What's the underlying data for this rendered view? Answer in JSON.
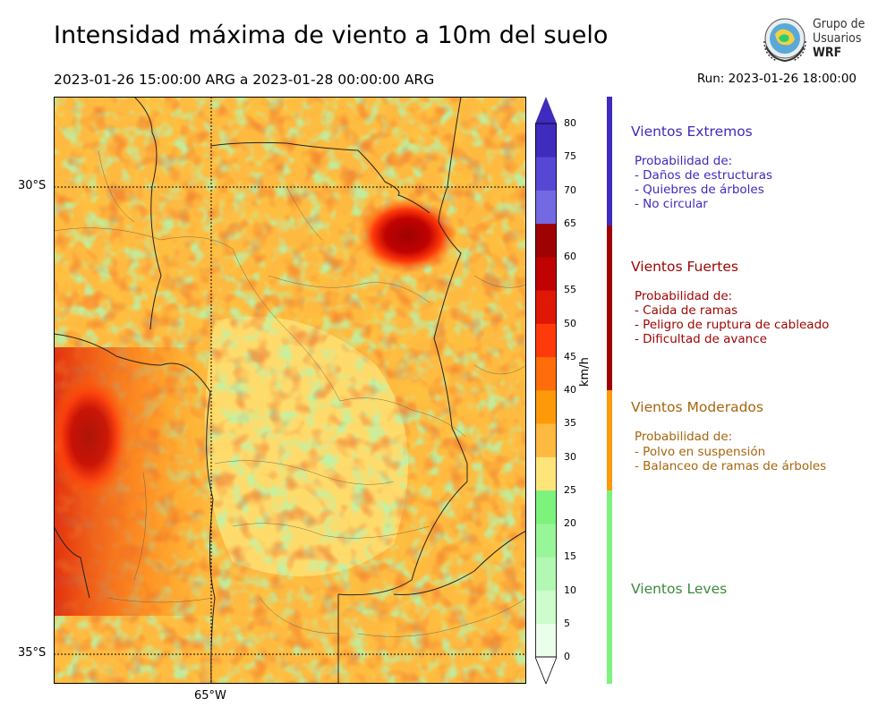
{
  "header": {
    "title": "Intensidad máxima de viento a 10m del suelo",
    "period": "2023-01-26 15:00:00 ARG  a  2023-01-28 00:00:00 ARG",
    "run": "Run: 2023-01-26 18:00:00"
  },
  "logo": {
    "line1": "Grupo de",
    "line2": "Usuarios",
    "line3": "WRF",
    "emblem_icon": "wrf-globe-emblem-icon"
  },
  "map": {
    "lat_labels": [
      "30°S",
      "35°S"
    ],
    "lon_labels": [
      "65°W"
    ],
    "field_icon": "wind-speed-field"
  },
  "colorbar": {
    "units": "km/h",
    "ticks": [
      "0",
      "5",
      "10",
      "15",
      "20",
      "25",
      "30",
      "35",
      "40",
      "45",
      "50",
      "55",
      "60",
      "65",
      "70",
      "75",
      "80"
    ],
    "colors": [
      "#eafeea",
      "#cdfccd",
      "#b2f8b2",
      "#98f598",
      "#7df27d",
      "#fee57a",
      "#feb941",
      "#fe9a0a",
      "#fe6d0a",
      "#fe3a0a",
      "#de1805",
      "#c10202",
      "#9e0202",
      "#7369e3",
      "#5647d4",
      "#3f2bbd"
    ],
    "extend_low": "#ffffff",
    "extend_high": "#3f2bbd"
  },
  "categories": [
    {
      "title": "Vientos Extremos",
      "color": "#3f2bbd",
      "lines": [
        "Probabilidad de:",
        "- Daños de estructuras",
        "- Quiebres de árboles",
        "- No circular"
      ]
    },
    {
      "title": "Vientos Fuertes",
      "color": "#9e0202",
      "lines": [
        "Probabilidad de:",
        "- Caida de ramas",
        "- Peligro de ruptura de cableado",
        "- Dificultad de avance"
      ]
    },
    {
      "title": "Vientos Moderados",
      "color": "#a6650d",
      "bar_color": "#fe9a0a",
      "lines": [
        "Probabilidad de:",
        "- Polvo en suspensión",
        "- Balanceo de ramas de árboles"
      ]
    },
    {
      "title": "Vientos Leves",
      "color": "#3a8a3a",
      "bar_color": "#7df27d",
      "lines": []
    }
  ]
}
